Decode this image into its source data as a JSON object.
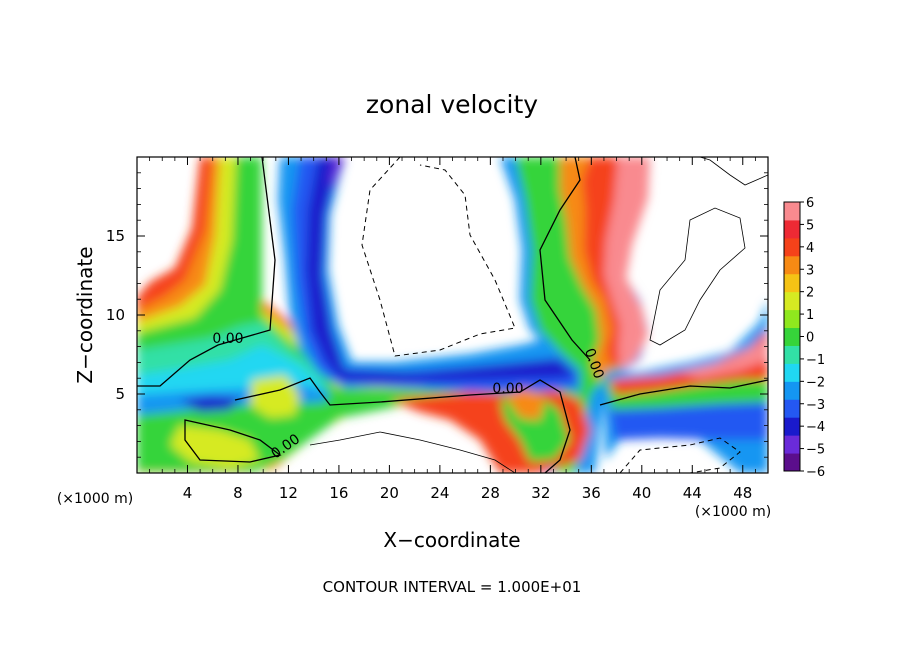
{
  "chart_data": {
    "type": "heatmap",
    "title": "zonal velocity",
    "xlabel": "X−coordinate",
    "ylabel": "Z−coordinate",
    "x_unit_left": "(×1000 m)",
    "x_unit_right": "(×1000 m)",
    "footer": "CONTOUR INTERVAL = 1.000E+01",
    "xlim": [
      0,
      50
    ],
    "ylim": [
      0,
      20
    ],
    "x_ticks": [
      4,
      8,
      12,
      16,
      20,
      24,
      28,
      32,
      36,
      40,
      44,
      48
    ],
    "y_ticks": [
      5,
      10,
      15
    ],
    "contour_labels": [
      "0.00",
      "0.00",
      "0.00",
      "0.00"
    ],
    "colorbar": {
      "min": -6,
      "max": 6,
      "ticks": [
        "6",
        "5",
        "4",
        "3",
        "2",
        "1",
        "0",
        "−1",
        "−2",
        "−3",
        "−4",
        "−5",
        "−6"
      ],
      "colors": [
        "#5b0e8c",
        "#6a2bd9",
        "#1a1acc",
        "#2458f2",
        "#1496f2",
        "#20d7f2",
        "#32e0a6",
        "#36d43a",
        "#8fe81e",
        "#d6ea22",
        "#f5c315",
        "#f78a14",
        "#f5421a",
        "#ee2a34",
        "#f98a8f"
      ]
    },
    "grid": false,
    "legend": "colorbar-right"
  }
}
